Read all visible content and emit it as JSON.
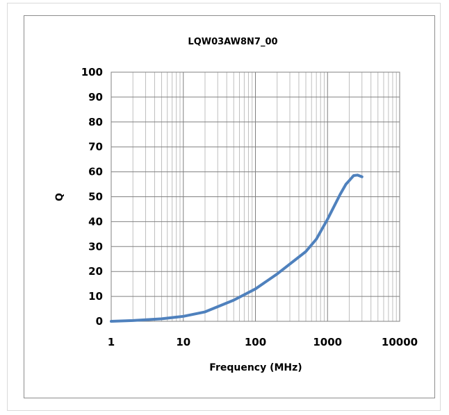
{
  "chart_data": {
    "type": "line",
    "title": "LQW03AW8N7_00",
    "xlabel": "Frequency (MHz)",
    "ylabel": "Q",
    "x_scale": "log",
    "xlim": [
      1,
      10000
    ],
    "ylim": [
      0,
      100
    ],
    "x_ticks": [
      "1",
      "10",
      "100",
      "1000",
      "10000"
    ],
    "y_ticks": [
      "0",
      "10",
      "20",
      "30",
      "40",
      "50",
      "60",
      "70",
      "80",
      "90",
      "100"
    ],
    "grid": true,
    "legend": "none",
    "series": [
      {
        "color": "#4f81bd",
        "x": [
          1,
          2,
          5,
          10,
          20,
          50,
          100,
          200,
          500,
          700,
          1000,
          1500,
          1800,
          2000,
          2300,
          2600,
          3000
        ],
        "y": [
          0,
          0.3,
          1,
          2,
          3.8,
          8.5,
          13,
          19,
          28,
          33,
          41,
          51,
          55,
          56.5,
          58.5,
          58.7,
          58
        ]
      }
    ]
  }
}
